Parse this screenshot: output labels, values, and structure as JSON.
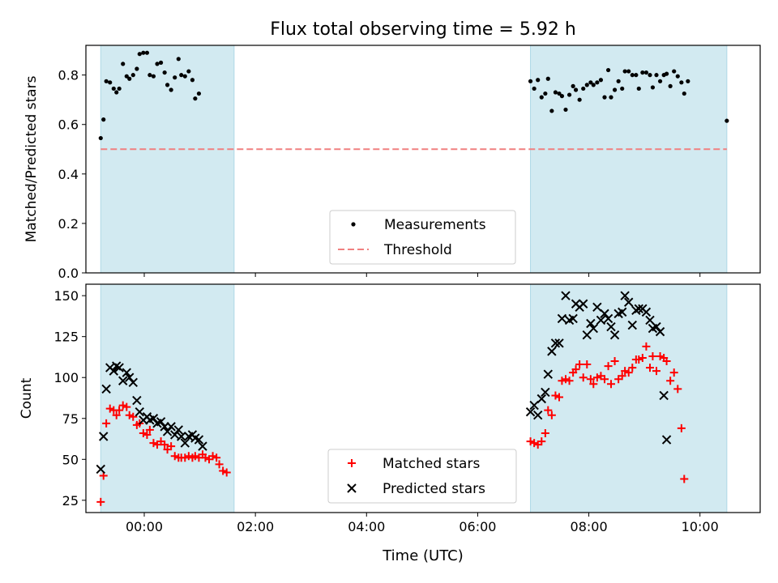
{
  "title": "Flux total observing time = 5.92 h",
  "xlabel": "Time (UTC)",
  "colors": {
    "band": "#add8e6",
    "measurement": "#000000",
    "threshold": "#f08080",
    "matched": "#ff0000",
    "predicted": "#000000"
  },
  "chart_data": [
    {
      "type": "scatter",
      "ylabel": "Matched/Predicted stars",
      "xlim": [
        "-01:03",
        "11:05"
      ],
      "ylim": [
        0.0,
        0.92
      ],
      "yticks": [
        0.0,
        0.2,
        0.4,
        0.6,
        0.8
      ],
      "ytick_labels": [
        "0.0",
        "0.2",
        "0.4",
        "0.6",
        "0.8"
      ],
      "grid": false,
      "legend_position": "lower center",
      "shaded_intervals": [
        [
          "-00:47",
          "01:37"
        ],
        [
          "06:57",
          "10:29"
        ]
      ],
      "threshold": 0.5,
      "legend": [
        "Measurements",
        "Threshold"
      ],
      "series": [
        {
          "name": "Measurements",
          "marker": "dot",
          "points": [
            [
              "-00:47",
              0.545
            ],
            [
              "-00:44",
              0.62
            ],
            [
              "-00:41",
              0.775
            ],
            [
              "-00:37",
              0.77
            ],
            [
              "-00:33",
              0.745
            ],
            [
              "-00:30",
              0.73
            ],
            [
              "-00:27",
              0.745
            ],
            [
              "-00:23",
              0.845
            ],
            [
              "-00:19",
              0.795
            ],
            [
              "-00:16",
              0.785
            ],
            [
              "-00:12",
              0.8
            ],
            [
              "-00:08",
              0.825
            ],
            [
              "-00:05",
              0.885
            ],
            [
              "-00:01",
              0.89
            ],
            [
              "00:03",
              0.89
            ],
            [
              "00:06",
              0.8
            ],
            [
              "00:10",
              0.795
            ],
            [
              "00:14",
              0.845
            ],
            [
              "00:18",
              0.85
            ],
            [
              "00:22",
              0.81
            ],
            [
              "00:25",
              0.76
            ],
            [
              "00:29",
              0.74
            ],
            [
              "00:33",
              0.79
            ],
            [
              "00:37",
              0.865
            ],
            [
              "00:40",
              0.8
            ],
            [
              "00:44",
              0.795
            ],
            [
              "00:48",
              0.815
            ],
            [
              "00:52",
              0.78
            ],
            [
              "00:55",
              0.705
            ],
            [
              "00:59",
              0.725
            ],
            [
              "06:57",
              0.775
            ],
            [
              "07:01",
              0.745
            ],
            [
              "07:05",
              0.78
            ],
            [
              "07:09",
              0.71
            ],
            [
              "07:13",
              0.725
            ],
            [
              "07:16",
              0.785
            ],
            [
              "07:20",
              0.655
            ],
            [
              "07:24",
              0.73
            ],
            [
              "07:28",
              0.725
            ],
            [
              "07:31",
              0.715
            ],
            [
              "07:35",
              0.66
            ],
            [
              "07:39",
              0.72
            ],
            [
              "07:43",
              0.755
            ],
            [
              "07:46",
              0.74
            ],
            [
              "07:50",
              0.7
            ],
            [
              "07:54",
              0.745
            ],
            [
              "07:58",
              0.76
            ],
            [
              "08:02",
              0.77
            ],
            [
              "08:05",
              0.76
            ],
            [
              "08:09",
              0.77
            ],
            [
              "08:13",
              0.78
            ],
            [
              "08:17",
              0.71
            ],
            [
              "08:21",
              0.82
            ],
            [
              "08:24",
              0.71
            ],
            [
              "08:28",
              0.74
            ],
            [
              "08:32",
              0.775
            ],
            [
              "08:36",
              0.745
            ],
            [
              "08:39",
              0.815
            ],
            [
              "08:43",
              0.815
            ],
            [
              "08:47",
              0.8
            ],
            [
              "08:51",
              0.8
            ],
            [
              "08:54",
              0.745
            ],
            [
              "08:58",
              0.81
            ],
            [
              "09:02",
              0.81
            ],
            [
              "09:06",
              0.8
            ],
            [
              "09:09",
              0.75
            ],
            [
              "09:13",
              0.8
            ],
            [
              "09:17",
              0.775
            ],
            [
              "09:21",
              0.8
            ],
            [
              "09:24",
              0.805
            ],
            [
              "09:28",
              0.755
            ],
            [
              "09:32",
              0.815
            ],
            [
              "09:36",
              0.795
            ],
            [
              "09:40",
              0.77
            ],
            [
              "09:43",
              0.725
            ],
            [
              "09:47",
              0.775
            ],
            [
              "10:29",
              0.615
            ]
          ]
        },
        {
          "name": "Threshold",
          "style": "dashed",
          "y": 0.5
        }
      ]
    },
    {
      "type": "scatter",
      "ylabel": "Count",
      "xlim": [
        "-01:03",
        "11:05"
      ],
      "ylim": [
        17.5,
        157
      ],
      "yticks": [
        25,
        50,
        75,
        100,
        125,
        150
      ],
      "ytick_labels": [
        "25",
        "50",
        "75",
        "100",
        "125",
        "150"
      ],
      "xticks": [
        "00:00",
        "02:00",
        "04:00",
        "06:00",
        "08:00",
        "10:00"
      ],
      "xtick_labels": [
        "00:00",
        "02:00",
        "04:00",
        "06:00",
        "08:00",
        "10:00"
      ],
      "xlabel": "Time (UTC)",
      "grid": false,
      "legend_position": "lower center",
      "shaded_intervals": [
        [
          "-00:47",
          "01:37"
        ],
        [
          "06:57",
          "10:29"
        ]
      ],
      "legend": [
        "Matched stars",
        "Predicted stars"
      ],
      "series": [
        {
          "name": "Matched stars",
          "marker": "plus",
          "points": [
            [
              "-00:47",
              24
            ],
            [
              "-00:44",
              40
            ],
            [
              "-00:41",
              72
            ],
            [
              "-00:37",
              81
            ],
            [
              "-00:33",
              80
            ],
            [
              "-00:30",
              77
            ],
            [
              "-00:27",
              80
            ],
            [
              "-00:23",
              83
            ],
            [
              "-00:19",
              82
            ],
            [
              "-00:16",
              77
            ],
            [
              "-00:12",
              76
            ],
            [
              "-00:08",
              71
            ],
            [
              "-00:05",
              72
            ],
            [
              "-00:01",
              66
            ],
            [
              "00:03",
              65
            ],
            [
              "00:06",
              68
            ],
            [
              "00:10",
              60
            ],
            [
              "00:14",
              59
            ],
            [
              "00:18",
              61
            ],
            [
              "00:22",
              59
            ],
            [
              "00:25",
              56
            ],
            [
              "00:29",
              58
            ],
            [
              "00:33",
              52
            ],
            [
              "00:37",
              51
            ],
            [
              "00:40",
              51
            ],
            [
              "00:44",
              51
            ],
            [
              "00:48",
              52
            ],
            [
              "00:52",
              51
            ],
            [
              "00:55",
              52
            ],
            [
              "00:59",
              51
            ],
            [
              "01:03",
              53
            ],
            [
              "01:06",
              51
            ],
            [
              "01:10",
              50
            ],
            [
              "01:14",
              52
            ],
            [
              "01:18",
              51
            ],
            [
              "01:21",
              47
            ],
            [
              "01:25",
              43
            ],
            [
              "01:29",
              42
            ],
            [
              "06:57",
              61
            ],
            [
              "07:01",
              60
            ],
            [
              "07:05",
              59
            ],
            [
              "07:09",
              61
            ],
            [
              "07:13",
              66
            ],
            [
              "07:16",
              80
            ],
            [
              "07:20",
              77
            ],
            [
              "07:24",
              89
            ],
            [
              "07:28",
              88
            ],
            [
              "07:31",
              98
            ],
            [
              "07:35",
              99
            ],
            [
              "07:39",
              98
            ],
            [
              "07:43",
              103
            ],
            [
              "07:46",
              105
            ],
            [
              "07:50",
              108
            ],
            [
              "07:54",
              100
            ],
            [
              "07:58",
              108
            ],
            [
              "08:02",
              99
            ],
            [
              "08:05",
              96
            ],
            [
              "08:09",
              100
            ],
            [
              "08:13",
              101
            ],
            [
              "08:17",
              99
            ],
            [
              "08:21",
              107
            ],
            [
              "08:24",
              96
            ],
            [
              "08:28",
              110
            ],
            [
              "08:32",
              99
            ],
            [
              "08:36",
              101
            ],
            [
              "08:39",
              104
            ],
            [
              "08:43",
              103
            ],
            [
              "08:47",
              106
            ],
            [
              "08:51",
              111
            ],
            [
              "08:54",
              111
            ],
            [
              "08:58",
              112
            ],
            [
              "09:02",
              119
            ],
            [
              "09:06",
              106
            ],
            [
              "09:09",
              113
            ],
            [
              "09:13",
              104
            ],
            [
              "09:17",
              113
            ],
            [
              "09:21",
              112
            ],
            [
              "09:24",
              110
            ],
            [
              "09:28",
              98
            ],
            [
              "09:32",
              103
            ],
            [
              "09:36",
              93
            ],
            [
              "09:40",
              69
            ],
            [
              "09:43",
              38
            ]
          ]
        },
        {
          "name": "Predicted stars",
          "marker": "x",
          "points": [
            [
              "-00:47",
              44
            ],
            [
              "-00:44",
              64
            ],
            [
              "-00:41",
              93
            ],
            [
              "-00:37",
              106
            ],
            [
              "-00:33",
              104
            ],
            [
              "-00:30",
              107
            ],
            [
              "-00:27",
              106
            ],
            [
              "-00:23",
              98
            ],
            [
              "-00:19",
              103
            ],
            [
              "-00:16",
              100
            ],
            [
              "-00:12",
              97
            ],
            [
              "-00:08",
              86
            ],
            [
              "-00:05",
              79
            ],
            [
              "-00:01",
              74
            ],
            [
              "00:03",
              76
            ],
            [
              "00:06",
              74
            ],
            [
              "00:10",
              75
            ],
            [
              "00:14",
              72
            ],
            [
              "00:18",
              73
            ],
            [
              "00:22",
              70
            ],
            [
              "00:25",
              67
            ],
            [
              "00:29",
              70
            ],
            [
              "00:33",
              65
            ],
            [
              "00:37",
              68
            ],
            [
              "00:40",
              64
            ],
            [
              "00:44",
              60
            ],
            [
              "00:48",
              64
            ],
            [
              "00:52",
              65
            ],
            [
              "00:55",
              63
            ],
            [
              "00:59",
              62
            ],
            [
              "01:03",
              58
            ],
            [
              "06:57",
              79
            ],
            [
              "07:01",
              83
            ],
            [
              "07:05",
              77
            ],
            [
              "07:09",
              87
            ],
            [
              "07:13",
              91
            ],
            [
              "07:16",
              102
            ],
            [
              "07:20",
              116
            ],
            [
              "07:24",
              121
            ],
            [
              "07:28",
              121
            ],
            [
              "07:31",
              136
            ],
            [
              "07:35",
              150
            ],
            [
              "07:39",
              135
            ],
            [
              "07:43",
              136
            ],
            [
              "07:46",
              145
            ],
            [
              "07:50",
              143
            ],
            [
              "07:54",
              145
            ],
            [
              "07:58",
              126
            ],
            [
              "08:02",
              133
            ],
            [
              "08:05",
              130
            ],
            [
              "08:09",
              143
            ],
            [
              "08:13",
              135
            ],
            [
              "08:17",
              139
            ],
            [
              "08:21",
              136
            ],
            [
              "08:24",
              131
            ],
            [
              "08:28",
              126
            ],
            [
              "08:32",
              139
            ],
            [
              "08:36",
              140
            ],
            [
              "08:39",
              150
            ],
            [
              "08:43",
              146
            ],
            [
              "08:47",
              132
            ],
            [
              "08:51",
              141
            ],
            [
              "08:54",
              142
            ],
            [
              "08:58",
              142
            ],
            [
              "09:02",
              140
            ],
            [
              "09:06",
              135
            ],
            [
              "09:09",
              130
            ],
            [
              "09:13",
              131
            ],
            [
              "09:17",
              128
            ],
            [
              "09:21",
              89
            ],
            [
              "09:24",
              62
            ]
          ]
        }
      ]
    }
  ]
}
